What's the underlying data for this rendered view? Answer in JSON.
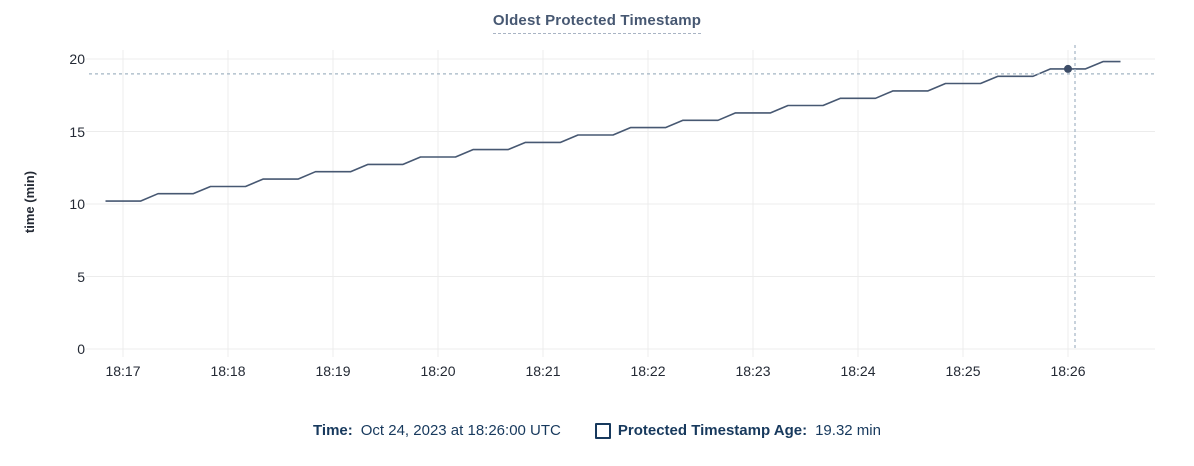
{
  "header": {
    "title": "Oldest Protected Timestamp"
  },
  "colors": {
    "title": "#475872",
    "series_line": "#475872",
    "hover_dot": "#3d4d68",
    "gridline": "#ececec",
    "crosshair": "#a3b5c4",
    "axis_text": "#242a35",
    "caption_text": "#17395d"
  },
  "chart_data": {
    "type": "line",
    "title": "Oldest Protected Timestamp",
    "xlabel": "",
    "ylabel": "time (min)",
    "ylim": [
      0,
      20
    ],
    "grid": true,
    "y_ticks": [
      0,
      5,
      10,
      15,
      20
    ],
    "x_ticks": [
      {
        "t": 0,
        "label": "18:17"
      },
      {
        "t": 60,
        "label": "18:18"
      },
      {
        "t": 120,
        "label": "18:19"
      },
      {
        "t": 180,
        "label": "18:20"
      },
      {
        "t": 240,
        "label": "18:21"
      },
      {
        "t": 300,
        "label": "18:22"
      },
      {
        "t": 360,
        "label": "18:23"
      },
      {
        "t": 420,
        "label": "18:24"
      },
      {
        "t": 480,
        "label": "18:25"
      },
      {
        "t": 540,
        "label": "18:26"
      }
    ],
    "x_domain_seconds_from_1817": [
      -20,
      590
    ],
    "series": [
      {
        "name": "Protected Timestamp Age",
        "unit": "min",
        "points": [
          [
            -10,
            10.2
          ],
          [
            10,
            10.2
          ],
          [
            20,
            10.71
          ],
          [
            40,
            10.71
          ],
          [
            50,
            11.21
          ],
          [
            70,
            11.21
          ],
          [
            80,
            11.72
          ],
          [
            100,
            11.72
          ],
          [
            110,
            12.23
          ],
          [
            130,
            12.23
          ],
          [
            140,
            12.73
          ],
          [
            160,
            12.73
          ],
          [
            170,
            13.24
          ],
          [
            190,
            13.24
          ],
          [
            200,
            13.75
          ],
          [
            220,
            13.75
          ],
          [
            230,
            14.25
          ],
          [
            250,
            14.25
          ],
          [
            260,
            14.76
          ],
          [
            280,
            14.76
          ],
          [
            290,
            15.27
          ],
          [
            310,
            15.27
          ],
          [
            320,
            15.77
          ],
          [
            340,
            15.77
          ],
          [
            350,
            16.28
          ],
          [
            370,
            16.28
          ],
          [
            380,
            16.79
          ],
          [
            400,
            16.79
          ],
          [
            410,
            17.29
          ],
          [
            430,
            17.29
          ],
          [
            440,
            17.8
          ],
          [
            460,
            17.8
          ],
          [
            470,
            18.31
          ],
          [
            490,
            18.31
          ],
          [
            500,
            18.81
          ],
          [
            520,
            18.81
          ],
          [
            530,
            19.32
          ],
          [
            550,
            19.32
          ],
          [
            560,
            19.82
          ],
          [
            570,
            19.82
          ]
        ]
      }
    ],
    "hover": {
      "point": {
        "t": 540,
        "v": 19.32
      },
      "crosshair": {
        "t": 544,
        "v": 18.97
      },
      "time": "Oct 24, 2023 at 18:26:00 UTC",
      "value": "19.32 min"
    }
  },
  "caption": {
    "time_label": "Time:",
    "time_value": "Oct 24, 2023 at 18:26:00 UTC",
    "legend_label": "Protected Timestamp Age:",
    "legend_value": "19.32 min"
  }
}
